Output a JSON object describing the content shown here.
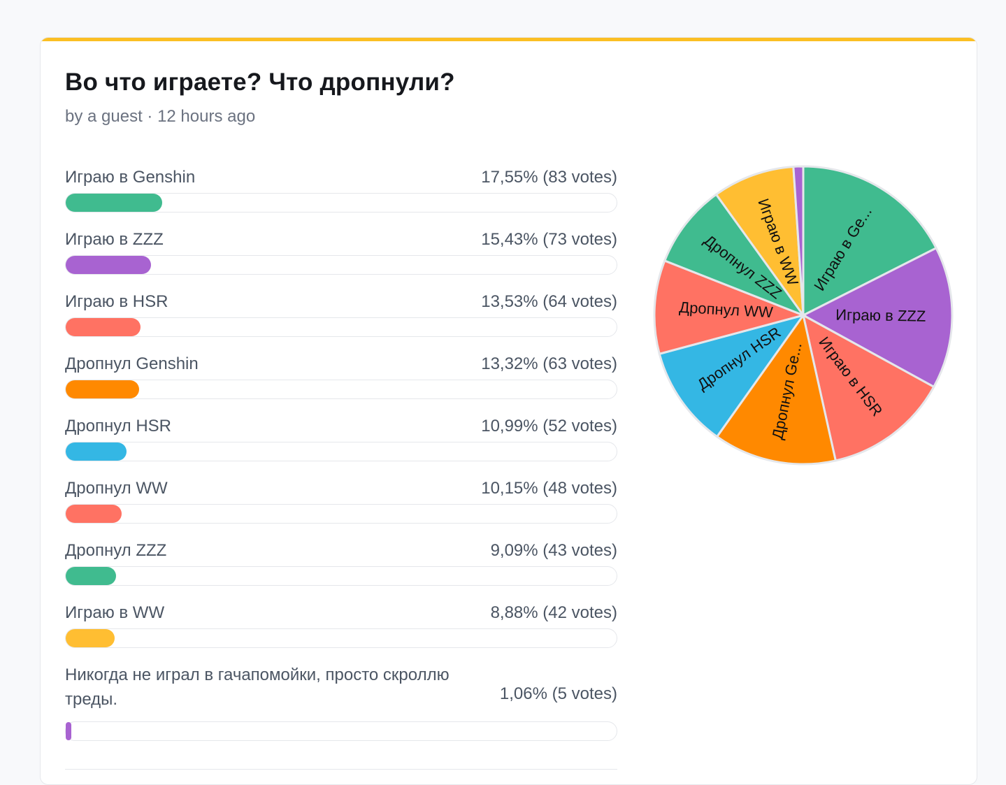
{
  "poll": {
    "title": "Во что играете? Что дропнули?",
    "meta": "by a guest · 12 hours ago"
  },
  "colors": {
    "accent": "#fbbf24"
  },
  "chart_data": {
    "type": "pie",
    "title": "Во что играете? Что дропнули?",
    "categories": [
      "Играю в Genshin",
      "Играю в ZZZ",
      "Играю в HSR",
      "Дропнул Genshin",
      "Дропнул HSR",
      "Дропнул WW",
      "Дропнул ZZZ",
      "Играю в WW",
      "Никогда не играл в гачапомойки, просто скроллю треды."
    ],
    "values": [
      83,
      73,
      64,
      63,
      52,
      48,
      43,
      42,
      5
    ],
    "percent_labels": [
      "17,55% (83 votes)",
      "15,43% (73 votes)",
      "13,53% (64 votes)",
      "13,32% (63 votes)",
      "10,99% (52 votes)",
      "10,15% (48 votes)",
      "9,09% (43 votes)",
      "8,88% (42 votes)",
      "1,06% (5 votes)"
    ],
    "slice_labels": [
      "Играю в Ge...",
      "Играю в ZZZ",
      "Играю в HSR",
      "Дропнул Ge...",
      "Дропнул HSR",
      "Дропнул WW",
      "Дропнул ZZZ",
      "Играю в WW",
      ""
    ],
    "colors": [
      "#40bb8f",
      "#a863d1",
      "#ff7263",
      "#ff8900",
      "#34b7e4",
      "#ff7263",
      "#40bb8f",
      "#ffbe32",
      "#a863d1"
    ]
  }
}
